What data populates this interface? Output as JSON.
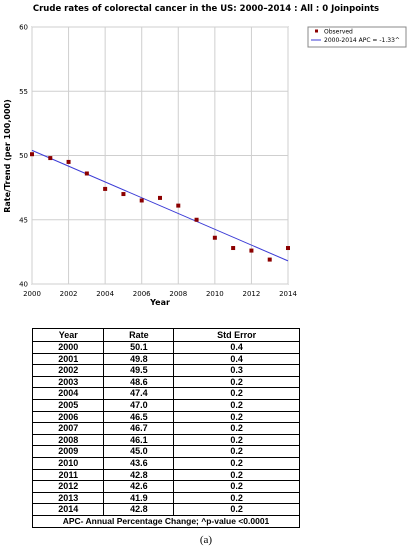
{
  "chart_data": {
    "type": "scatter",
    "title": "Crude rates of colorectal cancer in the US: 2000–2014 : All : 0 Joinpoints",
    "xlabel": "Year",
    "ylabel": "Rate/Trend (per 100,000)",
    "xlim": [
      2000,
      2014
    ],
    "ylim": [
      40,
      60
    ],
    "x_ticks": [
      "2000",
      "2002",
      "2004",
      "2006",
      "2008",
      "2010",
      "2012",
      "2014"
    ],
    "y_ticks": [
      "40",
      "45",
      "50",
      "55",
      "60"
    ],
    "grid": true,
    "legend_position": "top-right",
    "series": [
      {
        "name": "Observed",
        "type": "scatter",
        "color": "#8b0000",
        "x": [
          2000,
          2001,
          2002,
          2003,
          2004,
          2005,
          2006,
          2007,
          2008,
          2009,
          2010,
          2011,
          2012,
          2013,
          2014
        ],
        "y": [
          50.1,
          49.8,
          49.5,
          48.6,
          47.4,
          47.0,
          46.5,
          46.7,
          46.1,
          45.0,
          43.6,
          42.8,
          42.6,
          41.9,
          42.8
        ]
      },
      {
        "name": "2000-2014 APC = -1.33^",
        "type": "line",
        "color": "#3b3bd6",
        "x": [
          2000,
          2014
        ],
        "y": [
          50.4,
          41.8
        ]
      }
    ]
  },
  "table": {
    "headers": [
      "Year",
      "Rate",
      "Std Error"
    ],
    "rows": [
      [
        "2000",
        "50.1",
        "0.4"
      ],
      [
        "2001",
        "49.8",
        "0.4"
      ],
      [
        "2002",
        "49.5",
        "0.3"
      ],
      [
        "2003",
        "48.6",
        "0.2"
      ],
      [
        "2004",
        "47.4",
        "0.2"
      ],
      [
        "2005",
        "47.0",
        "0.2"
      ],
      [
        "2006",
        "46.5",
        "0.2"
      ],
      [
        "2007",
        "46.7",
        "0.2"
      ],
      [
        "2008",
        "46.1",
        "0.2"
      ],
      [
        "2009",
        "45.0",
        "0.2"
      ],
      [
        "2010",
        "43.6",
        "0.2"
      ],
      [
        "2011",
        "42.8",
        "0.2"
      ],
      [
        "2012",
        "42.6",
        "0.2"
      ],
      [
        "2013",
        "41.9",
        "0.2"
      ],
      [
        "2014",
        "42.8",
        "0.2"
      ]
    ],
    "note": "APC- Annual Percentage Change; ^p-value <0.0001"
  },
  "caption": "(a)"
}
